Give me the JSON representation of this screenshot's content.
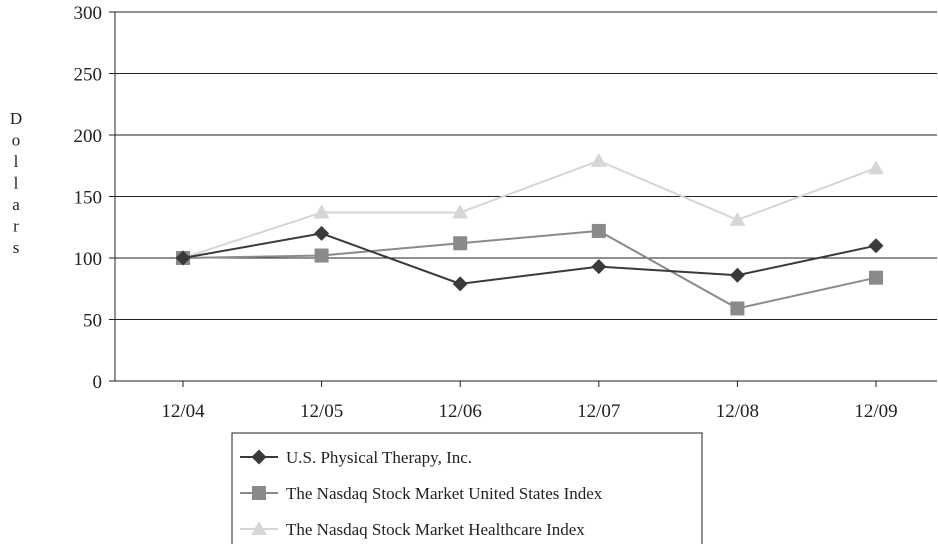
{
  "chart_data": {
    "type": "line",
    "title": "",
    "xlabel": "",
    "ylabel": "Dollars",
    "categories": [
      "12/04",
      "12/05",
      "12/06",
      "12/07",
      "12/08",
      "12/09"
    ],
    "ylim": [
      0,
      300
    ],
    "yticks": [
      0,
      50,
      100,
      150,
      200,
      250,
      300
    ],
    "grid": true,
    "legend": "bottom",
    "series": [
      {
        "name": "U.S. Physical Therapy, Inc.",
        "values": [
          100,
          120,
          79,
          93,
          86,
          110
        ],
        "color": "#3a3a3a",
        "marker": "diamond"
      },
      {
        "name": "The Nasdaq Stock Market United States Index",
        "values": [
          100,
          102,
          112,
          122,
          59,
          84
        ],
        "color": "#8a8a8a",
        "marker": "square"
      },
      {
        "name": "The Nasdaq Stock Market Healthcare Index",
        "values": [
          100,
          137,
          137,
          179,
          131,
          173
        ],
        "color": "#d6d6d6",
        "marker": "triangle"
      }
    ]
  }
}
